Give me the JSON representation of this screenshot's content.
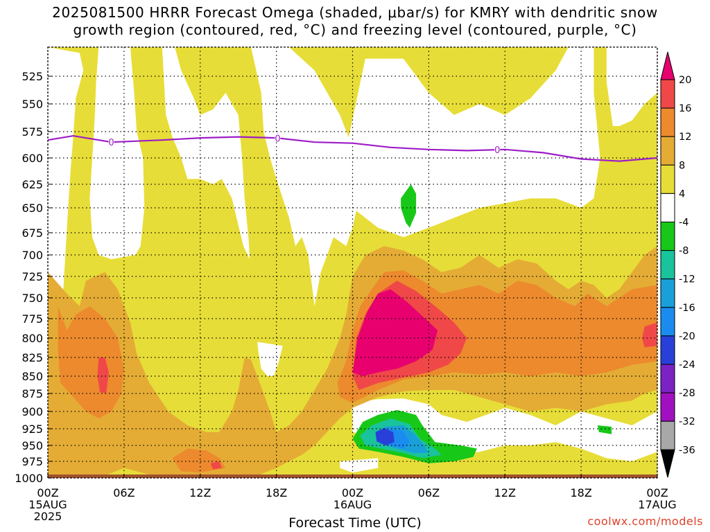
{
  "title": {
    "line1": "2025081500 HRRR Forecast Omega (shaded, μbar/s) for KMRY with dendritic snow",
    "line2": "growth region (contoured, red, °C) and freezing level (contoured, purple, °C)"
  },
  "credit": "coolwx.com/models",
  "chart_data": {
    "type": "heatmap",
    "xlabel": "Forecast Time (UTC)",
    "ylabel": "",
    "x_range_hours": [
      0,
      48
    ],
    "y_range_hpa": [
      1000,
      500
    ],
    "x_ticks": [
      {
        "hour": 0,
        "lines": [
          "00Z",
          "15AUG",
          "2025"
        ]
      },
      {
        "hour": 6,
        "lines": [
          "06Z"
        ]
      },
      {
        "hour": 12,
        "lines": [
          "12Z"
        ]
      },
      {
        "hour": 18,
        "lines": [
          "18Z"
        ]
      },
      {
        "hour": 24,
        "lines": [
          "00Z",
          "16AUG"
        ]
      },
      {
        "hour": 30,
        "lines": [
          "06Z"
        ]
      },
      {
        "hour": 36,
        "lines": [
          "12Z"
        ]
      },
      {
        "hour": 42,
        "lines": [
          "18Z"
        ]
      },
      {
        "hour": 48,
        "lines": [
          "00Z",
          "17AUG"
        ]
      }
    ],
    "y_ticks": [
      525,
      550,
      575,
      600,
      625,
      650,
      675,
      700,
      725,
      750,
      775,
      800,
      825,
      850,
      875,
      900,
      925,
      950,
      975,
      1000
    ],
    "grid": true,
    "colorbar": {
      "levels": [
        -36,
        -32,
        -28,
        -24,
        -20,
        -16,
        -12,
        -8,
        -4,
        4,
        8,
        12,
        16,
        20
      ],
      "labels": [
        "20",
        "16",
        "12",
        "8",
        "4",
        "-4",
        "-8",
        "-12",
        "-16",
        "-20",
        "-24",
        "-28",
        "-32",
        "-36"
      ],
      "colors": {
        "above_20": "#e8006f",
        "16_20": "#f04848",
        "12_16": "#ec8a2d",
        "8_12": "#e4ac35",
        "4_8": "#e7dd38",
        "neg4_4": "#ffffff",
        "neg8_neg4": "#18c818",
        "neg12_neg8": "#19c39c",
        "neg16_neg12": "#1aa0d8",
        "neg20_neg16": "#1a8cf0",
        "neg24_neg20": "#2840d8",
        "neg28_neg24": "#7a22c4",
        "neg32_neg28": "#a110c0",
        "neg36_neg32": "#a8a8a8",
        "below_neg36": "#000000"
      }
    },
    "freezing_level": {
      "color": "#9d1cc8",
      "contour_label": "0",
      "points": [
        {
          "hour": 0,
          "hpa": 583
        },
        {
          "hour": 2,
          "hpa": 579
        },
        {
          "hour": 5,
          "hpa": 585
        },
        {
          "hour": 9,
          "hpa": 583
        },
        {
          "hour": 12,
          "hpa": 581
        },
        {
          "hour": 15,
          "hpa": 580
        },
        {
          "hour": 18,
          "hpa": 581
        },
        {
          "hour": 21,
          "hpa": 585
        },
        {
          "hour": 24,
          "hpa": 586
        },
        {
          "hour": 27,
          "hpa": 590
        },
        {
          "hour": 30,
          "hpa": 592
        },
        {
          "hour": 33,
          "hpa": 593
        },
        {
          "hour": 36,
          "hpa": 592
        },
        {
          "hour": 39,
          "hpa": 595
        },
        {
          "hour": 42,
          "hpa": 601
        },
        {
          "hour": 45,
          "hpa": 603
        },
        {
          "hour": 48,
          "hpa": 600
        }
      ],
      "label_hours": [
        5,
        18.1,
        35.4
      ]
    },
    "regions": [
      {
        "name": "positive-omega-background",
        "range": "4 to 8"
      },
      {
        "name": "strong-rising-core-day2",
        "range": "above 20",
        "approx_hour": 28,
        "approx_hpa": 790
      },
      {
        "name": "rising-core-day1",
        "range": "16 to 20",
        "approx_hour": 4.5,
        "approx_hpa": 840
      },
      {
        "name": "sinking-core-day2",
        "range": "-24 to -20",
        "approx_hour": 26.5,
        "approx_hpa": 935
      },
      {
        "name": "sinking-area-upper",
        "range": "-8 to -4",
        "approx_hour": 28,
        "approx_hpa": 640
      }
    ]
  }
}
